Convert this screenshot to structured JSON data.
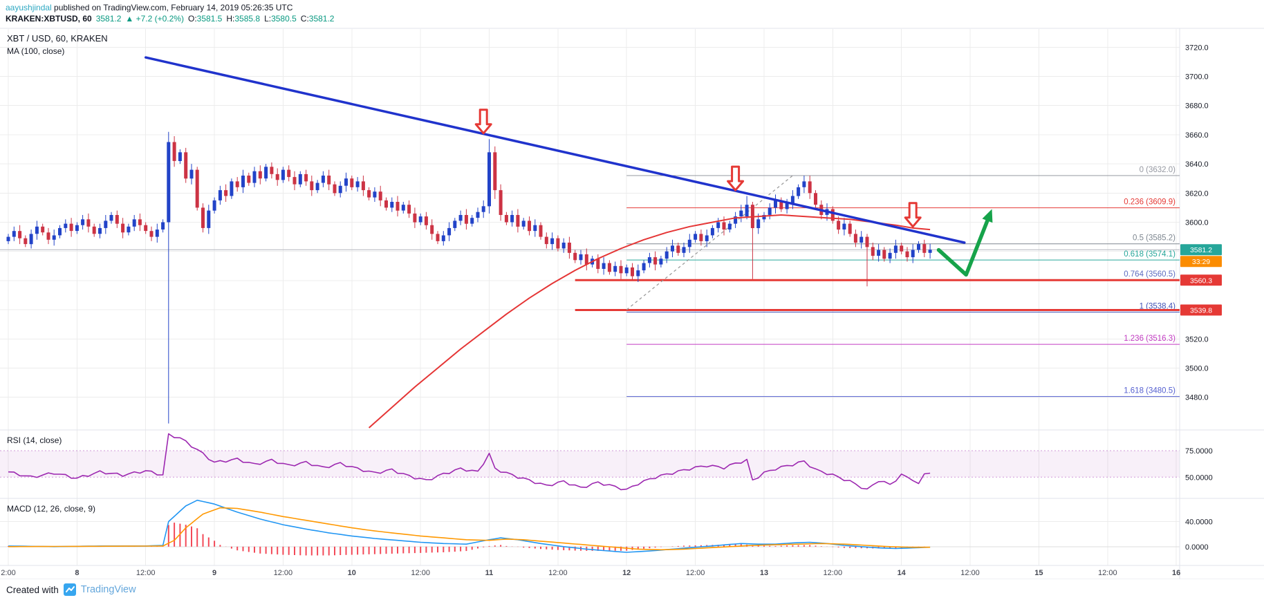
{
  "header": {
    "byline": {
      "author": "aayushjindal",
      "rest": " published on TradingView.com, February 14, 2019 05:26:35 UTC"
    },
    "symbol": {
      "name": "KRAKEN:XBTUSD, 60",
      "price": "3581.2",
      "change": "▲ +7.2 (+0.2%)",
      "o_label": "O:",
      "o": "3581.5",
      "h_label": "H:",
      "h": "3585.8",
      "l_label": "L:",
      "l": "3580.5",
      "c_label": "C:",
      "c": "3581.2"
    }
  },
  "legend": {
    "main": "XBT / USD, 60, KRAKEN",
    "ma": "MA (100, close)",
    "rsi": "RSI (14, close)",
    "macd": "MACD (12, 26, close, 9)"
  },
  "footer": {
    "created_with": "Created with",
    "brand": "TradingView"
  },
  "colors": {
    "up_candle": "#2243c8",
    "down_candle": "#cc3344",
    "trendline": "#2033cc",
    "ma": "#e53535",
    "support": "#e53935",
    "rsi_line": "#9c27b0",
    "macd_line": "#2196f3",
    "signal_line": "#ff9800",
    "hist": "#f23645",
    "badge_up": "#26a69a",
    "badge_countdown": "#fb8c00",
    "grid": "#ececec",
    "separator": "#e0e3eb",
    "axis_text": "#131722",
    "green_arrow": "#16a34a",
    "red_arrow": "#e53935",
    "dashed_guide": "#9b9b9b",
    "current_price_line": "#b2b5be"
  },
  "chart_data": {
    "type": "candlestick",
    "title": "XBT / USD, 60, KRAKEN",
    "interval_minutes": 60,
    "ylim": [
      3458.5,
      3732.5
    ],
    "price_ticks": [
      [
        "3720.0",
        3720
      ],
      [
        "3700.0",
        3700
      ],
      [
        "3680.0",
        3680
      ],
      [
        "3660.0",
        3660
      ],
      [
        "3640.0",
        3640
      ],
      [
        "3620.0",
        3620
      ],
      [
        "3600.0",
        3600
      ],
      [
        "3520.0",
        3520
      ],
      [
        "3500.0",
        3500
      ],
      [
        "3480.0",
        3480
      ]
    ],
    "grid_price_step": 20,
    "time_ticks": [
      [
        "2:00",
        0
      ],
      [
        "8",
        12
      ],
      [
        "12:00",
        24
      ],
      [
        "9",
        36
      ],
      [
        "12:00",
        48
      ],
      [
        "10",
        60
      ],
      [
        "12:00",
        72
      ],
      [
        "11",
        84
      ],
      [
        "12:00",
        96
      ],
      [
        "12",
        108
      ],
      [
        "12:00",
        120
      ],
      [
        "13",
        132
      ],
      [
        "12:00",
        144
      ],
      [
        "14",
        156
      ],
      [
        "12:00",
        168
      ],
      [
        "15",
        180
      ],
      [
        "12:00",
        192
      ],
      [
        "16",
        204
      ]
    ],
    "candles": {
      "closes": [
        3590,
        3594,
        3589,
        3585,
        3592,
        3597,
        3593,
        3588,
        3591,
        3596,
        3599,
        3594,
        3598,
        3602,
        3597,
        3592,
        3596,
        3601,
        3605,
        3599,
        3593,
        3597,
        3602,
        3598,
        3594,
        3590,
        3595,
        3600,
        3655,
        3642,
        3648,
        3630,
        3636,
        3610,
        3596,
        3608,
        3615,
        3622,
        3618,
        3628,
        3624,
        3632,
        3627,
        3635,
        3630,
        3638,
        3633,
        3629,
        3636,
        3631,
        3626,
        3633,
        3628,
        3622,
        3627,
        3632,
        3626,
        3620,
        3625,
        3630,
        3624,
        3628,
        3622,
        3617,
        3621,
        3615,
        3610,
        3614,
        3608,
        3612,
        3606,
        3600,
        3604,
        3598,
        3592,
        3587,
        3591,
        3596,
        3601,
        3605,
        3599,
        3603,
        3607,
        3611,
        3648,
        3622,
        3605,
        3600,
        3605,
        3597,
        3601,
        3594,
        3598,
        3590,
        3585,
        3589,
        3582,
        3586,
        3579,
        3574,
        3578,
        3571,
        3575,
        3568,
        3572,
        3566,
        3570,
        3565,
        3569,
        3563,
        3567,
        3572,
        3576,
        3571,
        3575,
        3580,
        3584,
        3579,
        3583,
        3588,
        3592,
        3587,
        3591,
        3596,
        3600,
        3595,
        3599,
        3604,
        3608,
        3612,
        3596,
        3602,
        3605,
        3610,
        3615,
        3609,
        3613,
        3618,
        3624,
        3628,
        3620,
        3612,
        3605,
        3609,
        3601,
        3595,
        3599,
        3592,
        3586,
        3590,
        3583,
        3577,
        3581,
        3575,
        3579,
        3584,
        3580,
        3576,
        3581,
        3585,
        3579,
        3581.2
      ],
      "specials": {
        "28": [
          3600,
          3662,
          3462,
          3655
        ],
        "84": [
          3611,
          3657,
          3606,
          3648
        ],
        "85": [
          3648,
          3652,
          3616,
          3622
        ],
        "129": [
          3604,
          3618,
          3602,
          3612
        ],
        "130": [
          3612,
          3614,
          3561,
          3596
        ],
        "139": [
          3624,
          3632,
          3620,
          3628
        ],
        "150": [
          3590,
          3592,
          3556,
          3583
        ]
      }
    },
    "indicators": {
      "ma100_keypoints": [
        [
          63,
          3459
        ],
        [
          67,
          3473
        ],
        [
          71,
          3487
        ],
        [
          75,
          3500
        ],
        [
          79,
          3513
        ],
        [
          83,
          3525
        ],
        [
          87,
          3537
        ],
        [
          91,
          3548
        ],
        [
          95,
          3558
        ],
        [
          99,
          3567
        ],
        [
          103,
          3575
        ],
        [
          107,
          3582
        ],
        [
          111,
          3588
        ],
        [
          115,
          3593
        ],
        [
          119,
          3597
        ],
        [
          123,
          3600
        ],
        [
          127,
          3603
        ],
        [
          131,
          3604
        ],
        [
          135,
          3605
        ],
        [
          139,
          3604
        ],
        [
          143,
          3603
        ],
        [
          147,
          3602
        ],
        [
          151,
          3600
        ],
        [
          155,
          3598
        ],
        [
          158,
          3596
        ],
        [
          161,
          3595
        ]
      ],
      "rsi": {
        "ylim": [
          30,
          94.6
        ],
        "band": [
          50,
          75
        ],
        "ticks": [
          [
            "75.0000",
            75
          ],
          [
            "50.0000",
            50
          ]
        ],
        "keypoints": [
          [
            0,
            55
          ],
          [
            4,
            50
          ],
          [
            8,
            54
          ],
          [
            12,
            49
          ],
          [
            16,
            55
          ],
          [
            20,
            52
          ],
          [
            24,
            56
          ],
          [
            27,
            52
          ],
          [
            28,
            90
          ],
          [
            30,
            87
          ],
          [
            33,
            76
          ],
          [
            36,
            64
          ],
          [
            40,
            67
          ],
          [
            43,
            62
          ],
          [
            46,
            66
          ],
          [
            49,
            61
          ],
          [
            52,
            64
          ],
          [
            55,
            59
          ],
          [
            58,
            63
          ],
          [
            61,
            58
          ],
          [
            64,
            54
          ],
          [
            67,
            57
          ],
          [
            70,
            51
          ],
          [
            73,
            47
          ],
          [
            76,
            53
          ],
          [
            79,
            58
          ],
          [
            82,
            55
          ],
          [
            84,
            72
          ],
          [
            85,
            58
          ],
          [
            88,
            52
          ],
          [
            91,
            47
          ],
          [
            94,
            42
          ],
          [
            97,
            46
          ],
          [
            100,
            40
          ],
          [
            103,
            45
          ],
          [
            106,
            41
          ],
          [
            108,
            38
          ],
          [
            110,
            44
          ],
          [
            113,
            50
          ],
          [
            116,
            54
          ],
          [
            119,
            58
          ],
          [
            122,
            61
          ],
          [
            125,
            59
          ],
          [
            127,
            63
          ],
          [
            129,
            66
          ],
          [
            130,
            47
          ],
          [
            132,
            54
          ],
          [
            134,
            58
          ],
          [
            137,
            62
          ],
          [
            139,
            65
          ],
          [
            141,
            57
          ],
          [
            144,
            52
          ],
          [
            147,
            46
          ],
          [
            150,
            38
          ],
          [
            152,
            47
          ],
          [
            154,
            43
          ],
          [
            156,
            52
          ],
          [
            158,
            48
          ],
          [
            159,
            43
          ],
          [
            160,
            53
          ],
          [
            161,
            55
          ]
        ]
      },
      "macd": {
        "ylim": [
          -30,
          77
        ],
        "ticks": [
          [
            "40.0000",
            40
          ],
          [
            "0.0000",
            0
          ]
        ],
        "macd_keypoints": [
          [
            0,
            1
          ],
          [
            8,
            0
          ],
          [
            16,
            1
          ],
          [
            24,
            1
          ],
          [
            27,
            2
          ],
          [
            28,
            40
          ],
          [
            31,
            65
          ],
          [
            33,
            74
          ],
          [
            36,
            68
          ],
          [
            40,
            55
          ],
          [
            44,
            44
          ],
          [
            48,
            35
          ],
          [
            52,
            28
          ],
          [
            56,
            22
          ],
          [
            60,
            17
          ],
          [
            64,
            13
          ],
          [
            68,
            10
          ],
          [
            72,
            7
          ],
          [
            76,
            5
          ],
          [
            80,
            4
          ],
          [
            84,
            11
          ],
          [
            86,
            14
          ],
          [
            89,
            11
          ],
          [
            93,
            5
          ],
          [
            97,
            0
          ],
          [
            101,
            -4
          ],
          [
            105,
            -7
          ],
          [
            108,
            -9
          ],
          [
            112,
            -7
          ],
          [
            116,
            -4
          ],
          [
            120,
            -1
          ],
          [
            124,
            2
          ],
          [
            128,
            5
          ],
          [
            131,
            4
          ],
          [
            134,
            4
          ],
          [
            137,
            6
          ],
          [
            140,
            7
          ],
          [
            143,
            5
          ],
          [
            146,
            2
          ],
          [
            149,
            0
          ],
          [
            152,
            -2
          ],
          [
            155,
            -3
          ],
          [
            158,
            -2
          ],
          [
            161,
            -1
          ]
        ],
        "signal_keypoints": [
          [
            0,
            0
          ],
          [
            27,
            1
          ],
          [
            29,
            10
          ],
          [
            31,
            30
          ],
          [
            34,
            52
          ],
          [
            37,
            62
          ],
          [
            40,
            61
          ],
          [
            44,
            55
          ],
          [
            48,
            48
          ],
          [
            52,
            42
          ],
          [
            56,
            36
          ],
          [
            60,
            30
          ],
          [
            64,
            25
          ],
          [
            68,
            21
          ],
          [
            72,
            17
          ],
          [
            76,
            14
          ],
          [
            80,
            11
          ],
          [
            84,
            10
          ],
          [
            87,
            12
          ],
          [
            90,
            11
          ],
          [
            94,
            8
          ],
          [
            98,
            5
          ],
          [
            102,
            2
          ],
          [
            106,
            -1
          ],
          [
            110,
            -4
          ],
          [
            114,
            -5
          ],
          [
            118,
            -4
          ],
          [
            122,
            -2
          ],
          [
            126,
            0
          ],
          [
            130,
            2
          ],
          [
            134,
            3
          ],
          [
            138,
            4
          ],
          [
            142,
            5
          ],
          [
            146,
            4
          ],
          [
            150,
            2
          ],
          [
            154,
            0
          ],
          [
            158,
            -1
          ],
          [
            161,
            -1
          ]
        ]
      }
    },
    "overlays": {
      "trendline": {
        "from": [
          24,
          3713
        ],
        "to": [
          167,
          3586
        ]
      },
      "dashed_line": {
        "from": [
          108,
          3540
        ],
        "to": [
          137,
          3632
        ]
      },
      "fib": {
        "start_i": 108,
        "levels": [
          {
            "label": "0 (3632.0)",
            "price": 3632.0,
            "color": "#9598a1"
          },
          {
            "label": "0.236 (3609.9)",
            "price": 3609.9,
            "color": "#e53935"
          },
          {
            "label": "0.5 (3585.2)",
            "price": 3585.2,
            "color": "#7e8790"
          },
          {
            "label": "0.618 (3574.1)",
            "price": 3574.1,
            "color": "#26a69a"
          },
          {
            "label": "0.764 (3560.5)",
            "price": 3560.5,
            "color": "#5c6bc0"
          },
          {
            "label": "1 (3538.4)",
            "price": 3538.4,
            "color": "#3f51b5"
          },
          {
            "label": "1.236 (3516.3)",
            "price": 3516.3,
            "color": "#c23bc2"
          },
          {
            "label": "1.618 (3480.5)",
            "price": 3480.5,
            "color": "#5560d0"
          }
        ]
      },
      "support_lines": [
        {
          "price": 3560.3,
          "start_i": 99,
          "badge": "3560.3"
        },
        {
          "price": 3539.8,
          "start_i": 99,
          "badge": "3539.8"
        }
      ],
      "red_arrows": [
        {
          "i": 83,
          "tip_price": 3661
        },
        {
          "i": 127,
          "tip_price": 3622
        },
        {
          "i": 158,
          "tip_price": 3597
        }
      ],
      "green_arrow": {
        "points": [
          [
            162.5,
            3581
          ],
          [
            167.3,
            3564
          ],
          [
            171.8,
            3609
          ]
        ]
      },
      "last_price": {
        "value": 3581.2,
        "badge": "3581.2",
        "countdown": "33:29"
      }
    }
  }
}
